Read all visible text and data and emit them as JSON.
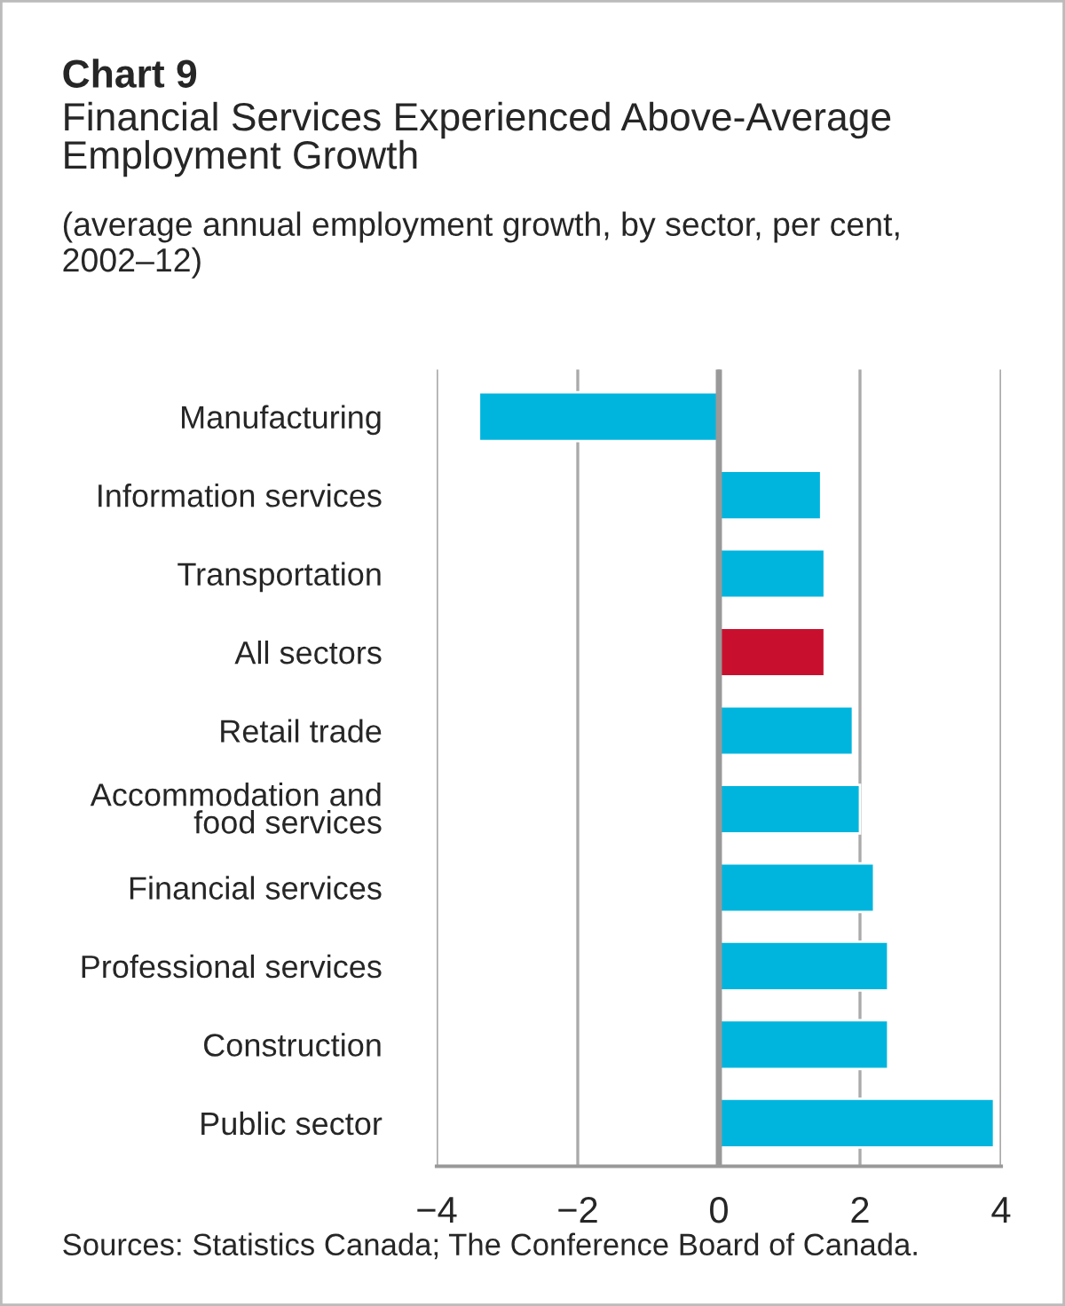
{
  "chart_data": {
    "type": "bar",
    "orientation": "horizontal",
    "title": "Chart 9",
    "subtitle": "Financial Services Experienced Above-Average\nEmployment Growth",
    "annotations": [
      "(average annual employment growth, by sector, per cent,\n2002–12)",
      "Sources: Statistics Canada; The Conference Board of Canada."
    ],
    "categories": [
      "Manufacturing",
      "Information services",
      "Transportation",
      "All sectors",
      "Retail trade",
      "Accommodation and\nfood services",
      "Financial services",
      "Professional services",
      "Construction",
      "Public sector"
    ],
    "values": [
      -3.4,
      1.45,
      1.5,
      1.5,
      1.9,
      2.0,
      2.2,
      2.4,
      2.4,
      3.9
    ],
    "colors": [
      "#00b5dd",
      "#00b5dd",
      "#00b5dd",
      "#c8102e",
      "#00b5dd",
      "#00b5dd",
      "#00b5dd",
      "#00b5dd",
      "#00b5dd",
      "#00b5dd"
    ],
    "xlim": [
      -4,
      4
    ],
    "xticks": [
      {
        "value": -4,
        "label": "−4"
      },
      {
        "value": -2,
        "label": "−2"
      },
      0,
      2,
      4
    ],
    "grid": "x",
    "ref_lines": [
      {
        "axis": "x",
        "value": 0,
        "color": "#999999"
      }
    ],
    "legend": false
  }
}
